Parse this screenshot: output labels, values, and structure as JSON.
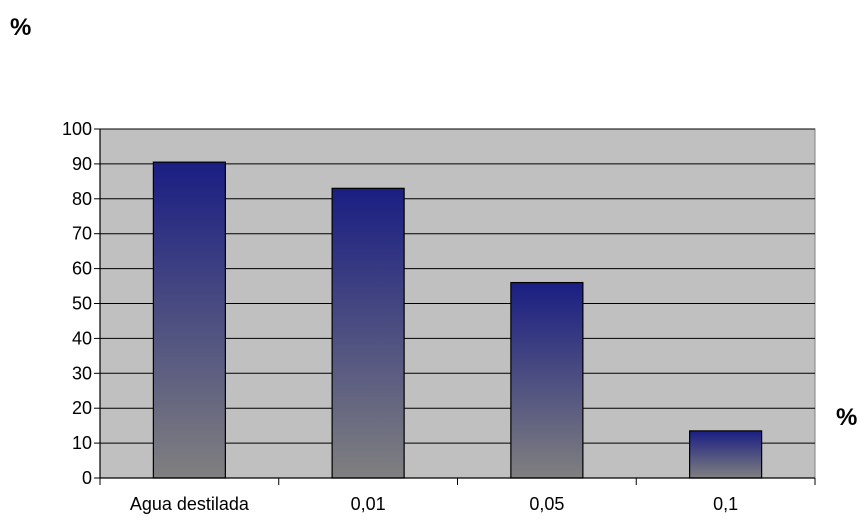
{
  "chart_data": {
    "type": "bar",
    "title": "",
    "ylabel": "%",
    "xlabel": "%",
    "categories": [
      "Agua destilada",
      "0,01",
      "0,05",
      "0,1"
    ],
    "values": [
      90.5,
      83,
      56,
      13.5
    ],
    "ylim": [
      0,
      100
    ],
    "yticks": [
      0,
      10,
      20,
      30,
      40,
      50,
      60,
      70,
      80,
      90,
      100
    ],
    "grid": true,
    "legend": "none",
    "colors": {
      "plot_background": "#c0c0c0",
      "bar_top": "#1a1e82",
      "bar_bottom": "#808080",
      "grid": "#000000"
    }
  }
}
